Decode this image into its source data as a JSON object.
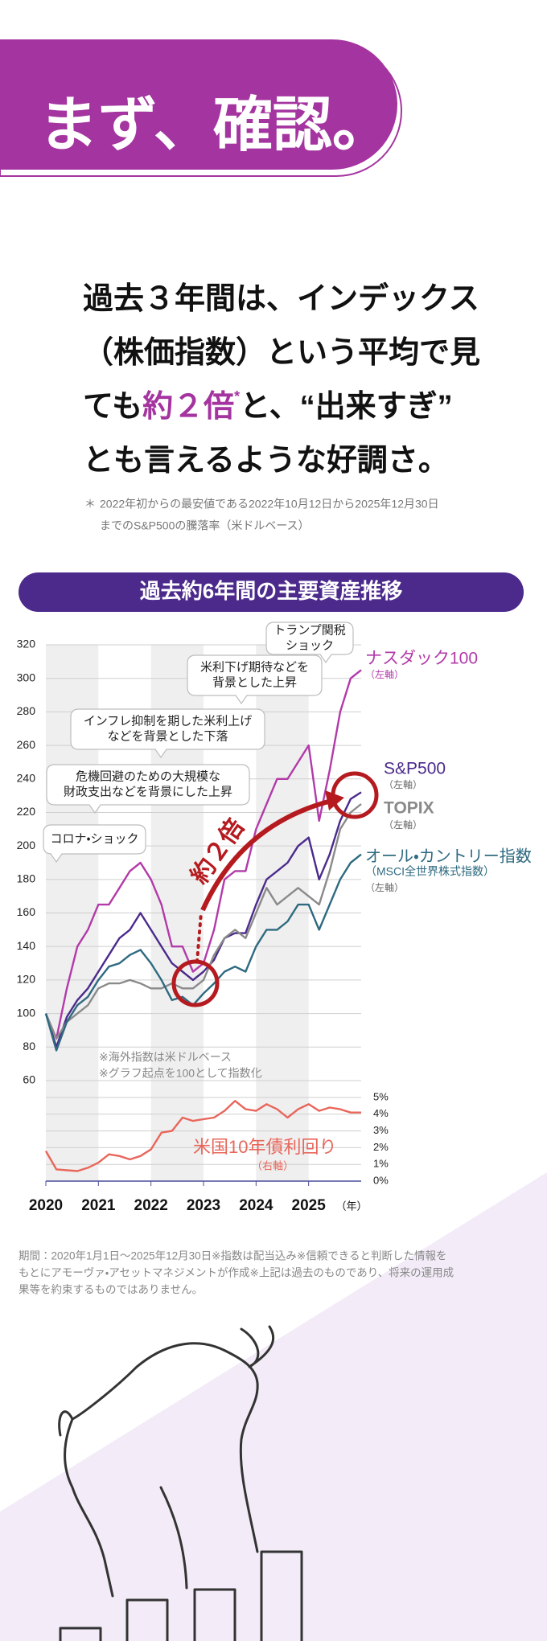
{
  "header": {
    "title": "まず、確認。"
  },
  "lead": {
    "line1": "過去３年間は、インデックス",
    "line2": "（株価指数）という平均で見",
    "line3_before": "ても",
    "line3_highlight": "約２倍",
    "line3_mark": "*",
    "line3_after": "と、“出来すぎ”",
    "line4": "とも言えるような好調さ。"
  },
  "footnote": {
    "mark": "＊",
    "lines": [
      "2022年初からの最安値である2022年10月12日から2025年12月30日",
      "までのS&P500の騰落率（米ドルベース）"
    ]
  },
  "chart_data": [
    {
      "type": "line",
      "title": "過去約6年間の主要資産推移",
      "x": [
        2020,
        2020.2,
        2020.4,
        2020.6,
        2020.8,
        2021,
        2021.2,
        2021.4,
        2021.6,
        2021.8,
        2022,
        2022.2,
        2022.4,
        2022.6,
        2022.8,
        2023,
        2023.2,
        2023.4,
        2023.6,
        2023.8,
        2024,
        2024.2,
        2024.4,
        2024.6,
        2024.8,
        2025,
        2025.2,
        2025.4,
        2025.6,
        2025.8,
        2026
      ],
      "xlim": [
        2020,
        2026
      ],
      "ylim": [
        60,
        320
      ],
      "yticks": [
        60,
        80,
        100,
        120,
        140,
        160,
        180,
        200,
        220,
        240,
        260,
        280,
        300,
        320
      ],
      "grid": true,
      "series": [
        {
          "name": "ナスダック100",
          "axis_note": "（左軸）",
          "color": "#b23aa9",
          "values": [
            100,
            85,
            115,
            140,
            150,
            165,
            165,
            175,
            185,
            190,
            180,
            165,
            140,
            140,
            125,
            130,
            150,
            180,
            185,
            185,
            210,
            225,
            240,
            240,
            250,
            260,
            215,
            245,
            280,
            300,
            305
          ]
        },
        {
          "name": "S&P500",
          "axis_note": "（左軸）",
          "color": "#4b2a8c",
          "values": [
            100,
            80,
            98,
            108,
            115,
            125,
            135,
            145,
            150,
            160,
            150,
            140,
            130,
            125,
            120,
            125,
            132,
            145,
            148,
            148,
            165,
            180,
            185,
            190,
            200,
            205,
            180,
            195,
            215,
            228,
            232
          ]
        },
        {
          "name": "TOPIX",
          "axis_note": "（左軸）",
          "color": "#8a8a8a",
          "values": [
            100,
            85,
            95,
            100,
            105,
            115,
            118,
            118,
            120,
            118,
            115,
            115,
            118,
            115,
            115,
            120,
            135,
            145,
            150,
            145,
            160,
            175,
            165,
            170,
            175,
            170,
            165,
            185,
            210,
            220,
            225
          ]
        },
        {
          "name": "オール・カントリー指数",
          "subtitle": "（MSCI全世界株式指数）",
          "axis_note": "（左軸）",
          "color": "#2e6a80",
          "values": [
            100,
            78,
            95,
            105,
            110,
            120,
            128,
            130,
            135,
            138,
            130,
            120,
            108,
            110,
            105,
            112,
            118,
            125,
            128,
            125,
            140,
            150,
            150,
            155,
            165,
            165,
            150,
            165,
            180,
            190,
            195
          ]
        }
      ],
      "annotations": [
        {
          "lines": [
            "トランプ関税",
            "ショック"
          ]
        },
        {
          "lines": [
            "米利下げ期待などを",
            "背景とした上昇"
          ]
        },
        {
          "lines": [
            "インフレ抑制を期した米利上げ",
            "などを背景とした下落"
          ]
        },
        {
          "lines": [
            "危機回避のための大規模な",
            "財政支出などを背景にした上昇"
          ]
        },
        {
          "lines": [
            "コロナ・ショック"
          ]
        }
      ],
      "multiple_label": "約２倍",
      "notes": [
        "※海外指数は米ドルベース",
        "※グラフ起点を100として指数化"
      ]
    },
    {
      "type": "line",
      "x": [
        2020,
        2020.2,
        2020.4,
        2020.6,
        2020.8,
        2021,
        2021.2,
        2021.4,
        2021.6,
        2021.8,
        2022,
        2022.2,
        2022.4,
        2022.6,
        2022.8,
        2023,
        2023.2,
        2023.4,
        2023.6,
        2023.8,
        2024,
        2024.2,
        2024.4,
        2024.6,
        2024.8,
        2025,
        2025.2,
        2025.4,
        2025.6,
        2025.8,
        2026
      ],
      "xlim": [
        2020,
        2026
      ],
      "xticks": [
        2020,
        2021,
        2022,
        2023,
        2024,
        2025
      ],
      "x_label": "（年）",
      "ylim": [
        0,
        5
      ],
      "yticks": [
        {
          "value": 0,
          "label": "0%"
        },
        {
          "value": 1,
          "label": "1%"
        },
        {
          "value": 2,
          "label": "2%"
        },
        {
          "value": 3,
          "label": "3%"
        },
        {
          "value": 4,
          "label": "4%"
        },
        {
          "value": 5,
          "label": "5%"
        }
      ],
      "grid": true,
      "series": [
        {
          "name": "米国10年債利回り",
          "axis_note": "（右軸）",
          "color": "#e8665a",
          "values": [
            1.8,
            0.7,
            0.65,
            0.6,
            0.8,
            1.1,
            1.6,
            1.5,
            1.3,
            1.5,
            1.9,
            2.9,
            3.0,
            3.8,
            3.6,
            3.7,
            3.8,
            4.2,
            4.8,
            4.3,
            4.2,
            4.6,
            4.3,
            3.8,
            4.3,
            4.6,
            4.2,
            4.4,
            4.3,
            4.1,
            4.1
          ]
        }
      ]
    }
  ],
  "footer": {
    "lines": [
      "期間：2020年1月1日～2025年12月30日※指数は配当込み※信頼できると判断した情報を",
      "もとにアモーヴァ・アセットマネジメントが作成※上記は過去のものであり、将来の運用成",
      "果等を約束するものではありません。"
    ]
  }
}
